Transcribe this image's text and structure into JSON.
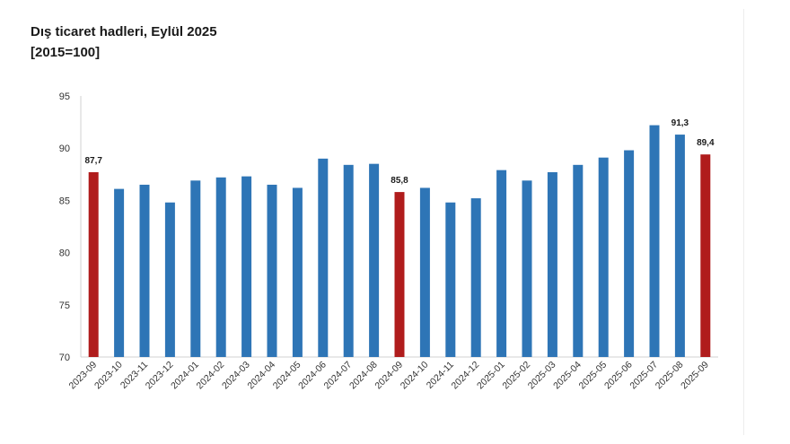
{
  "header": {
    "title": "Dış ticaret hadleri, Eylül 2025",
    "subtitle": "[2015=100]"
  },
  "colors": {
    "bar_default": "#2E75B6",
    "bar_highlight": "#B01C1C",
    "axis": "#d0d0d0",
    "text": "#1a1a1a"
  },
  "chart_data": {
    "type": "bar",
    "title": "Dış ticaret hadleri, Eylül 2025",
    "subtitle": "[2015=100]",
    "xlabel": "",
    "ylabel": "",
    "ylim": [
      70,
      95
    ],
    "yticks": [
      70,
      75,
      80,
      85,
      90,
      95
    ],
    "grid": false,
    "categories": [
      "2023-09",
      "2023-10",
      "2023-11",
      "2023-12",
      "2024-01",
      "2024-02",
      "2024-03",
      "2024-04",
      "2024-05",
      "2024-06",
      "2024-07",
      "2024-08",
      "2024-09",
      "2024-10",
      "2024-11",
      "2024-12",
      "2025-01",
      "2025-02",
      "2025-03",
      "2025-04",
      "2025-05",
      "2025-06",
      "2025-07",
      "2025-08",
      "2025-09"
    ],
    "values": [
      87.7,
      86.1,
      86.5,
      84.8,
      86.9,
      87.2,
      87.3,
      86.5,
      86.2,
      89.0,
      88.4,
      88.5,
      85.8,
      86.2,
      84.8,
      85.2,
      87.9,
      86.9,
      87.7,
      88.4,
      89.1,
      89.8,
      92.2,
      91.3,
      89.4
    ],
    "highlighted": [
      "2023-09",
      "2024-09",
      "2025-09"
    ],
    "data_labels": [
      {
        "category": "2023-09",
        "text": "87,7"
      },
      {
        "category": "2024-09",
        "text": "85,8"
      },
      {
        "category": "2025-08",
        "text": "91,3"
      },
      {
        "category": "2025-09",
        "text": "89,4"
      }
    ]
  }
}
